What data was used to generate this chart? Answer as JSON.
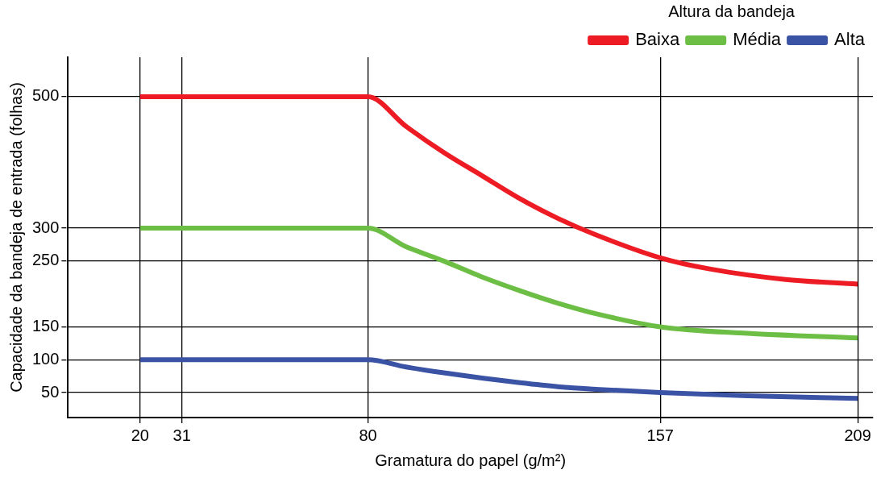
{
  "chart_data": {
    "type": "line",
    "xlabel": "Gramatura do papel (g/m²)",
    "ylabel": "Capacidade da bandeja de entrada (folhas)",
    "legend_title": "Altura da bandeja",
    "legend": "top right",
    "grid": true,
    "marker": "none",
    "line_style": "solid",
    "xlim": [
      1,
      213
    ],
    "xticks": [
      20,
      31,
      80,
      157,
      209
    ],
    "ylim": [
      12,
      560
    ],
    "yticks": [
      50,
      100,
      150,
      250,
      300,
      500
    ],
    "series": [
      {
        "name": "Baixa",
        "color": "#ed1c24",
        "x": [
          20,
          80,
          90,
          100,
          110,
          120,
          130,
          140,
          157,
          170,
          190,
          209
        ],
        "values": [
          500,
          500,
          455,
          415,
          380,
          345,
          315,
          290,
          255,
          238,
          222,
          215
        ]
      },
      {
        "name": "Média",
        "color": "#6dbe45",
        "x": [
          20,
          80,
          90,
          100,
          110,
          120,
          130,
          140,
          157,
          180,
          209
        ],
        "values": [
          300,
          300,
          272,
          250,
          226,
          205,
          186,
          170,
          150,
          140,
          133
        ]
      },
      {
        "name": "Alta",
        "color": "#3a53a4",
        "x": [
          20,
          80,
          90,
          100,
          110,
          120,
          130,
          140,
          157,
          180,
          209
        ],
        "values": [
          100,
          100,
          89,
          80,
          72,
          65,
          59,
          55,
          50,
          45,
          41
        ]
      }
    ]
  }
}
